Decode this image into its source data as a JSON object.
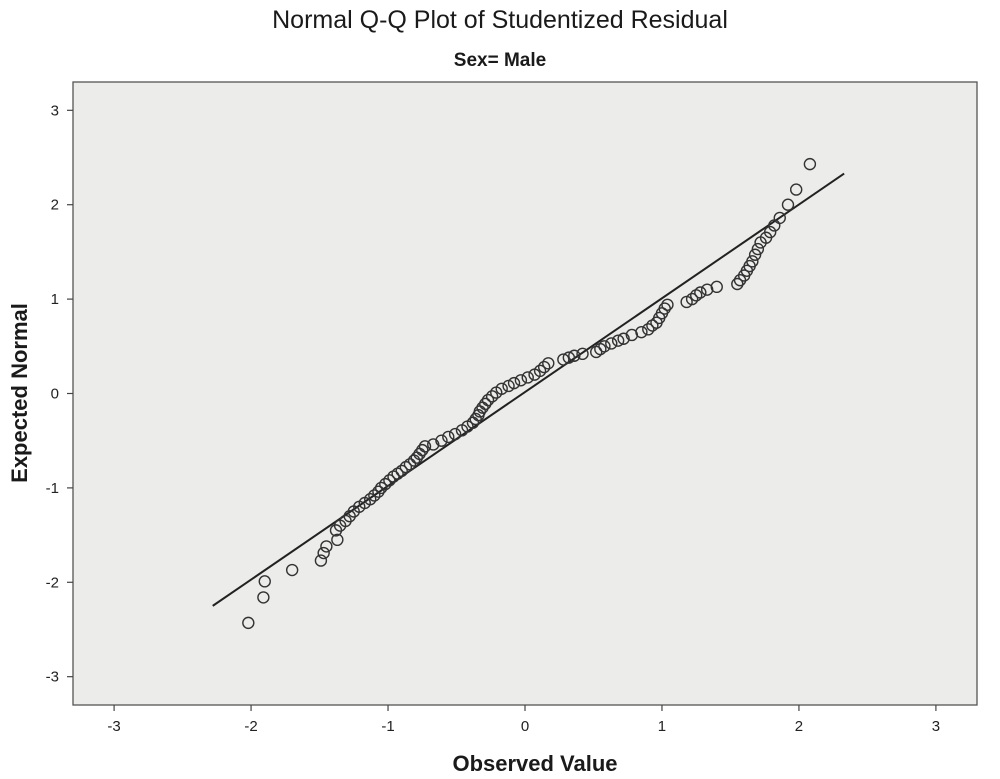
{
  "chart_data": {
    "type": "scatter",
    "title": "Normal Q-Q Plot of Studentized Residual",
    "subtitle": "Sex= Male",
    "xlabel": "Observed Value",
    "ylabel": "Expected Normal",
    "xlim": [
      -3.3,
      3.3
    ],
    "ylim": [
      -3.3,
      3.3
    ],
    "xticks": [
      -3,
      -2,
      -1,
      0,
      1,
      2,
      3
    ],
    "yticks": [
      -3,
      -2,
      -1,
      0,
      1,
      2,
      3
    ],
    "grid": false,
    "plot_background": "#ececea",
    "marker_color": "#333333",
    "reference_line": {
      "x": [
        -2.28,
        2.33
      ],
      "y": [
        -2.25,
        2.33
      ]
    },
    "points": [
      [
        -2.02,
        -2.43
      ],
      [
        -1.91,
        -2.16
      ],
      [
        -1.9,
        -1.99
      ],
      [
        -1.7,
        -1.87
      ],
      [
        -1.49,
        -1.77
      ],
      [
        -1.47,
        -1.69
      ],
      [
        -1.45,
        -1.62
      ],
      [
        -1.37,
        -1.55
      ],
      [
        -1.38,
        -1.45
      ],
      [
        -1.35,
        -1.4
      ],
      [
        -1.31,
        -1.35
      ],
      [
        -1.28,
        -1.3
      ],
      [
        -1.25,
        -1.25
      ],
      [
        -1.21,
        -1.2
      ],
      [
        -1.17,
        -1.16
      ],
      [
        -1.13,
        -1.12
      ],
      [
        -1.1,
        -1.08
      ],
      [
        -1.07,
        -1.04
      ],
      [
        -1.05,
        -1.0
      ],
      [
        -1.02,
        -0.96
      ],
      [
        -0.99,
        -0.92
      ],
      [
        -0.96,
        -0.88
      ],
      [
        -0.93,
        -0.85
      ],
      [
        -0.9,
        -0.82
      ],
      [
        -0.87,
        -0.78
      ],
      [
        -0.84,
        -0.75
      ],
      [
        -0.81,
        -0.71
      ],
      [
        -0.79,
        -0.68
      ],
      [
        -0.77,
        -0.64
      ],
      [
        -0.75,
        -0.6
      ],
      [
        -0.73,
        -0.56
      ],
      [
        -0.67,
        -0.54
      ],
      [
        -0.61,
        -0.5
      ],
      [
        -0.56,
        -0.46
      ],
      [
        -0.51,
        -0.43
      ],
      [
        -0.46,
        -0.39
      ],
      [
        -0.42,
        -0.35
      ],
      [
        -0.38,
        -0.31
      ],
      [
        -0.36,
        -0.27
      ],
      [
        -0.34,
        -0.23
      ],
      [
        -0.33,
        -0.19
      ],
      [
        -0.31,
        -0.15
      ],
      [
        -0.29,
        -0.11
      ],
      [
        -0.27,
        -0.07
      ],
      [
        -0.24,
        -0.03
      ],
      [
        -0.21,
        0.01
      ],
      [
        -0.17,
        0.05
      ],
      [
        -0.12,
        0.08
      ],
      [
        -0.08,
        0.11
      ],
      [
        -0.03,
        0.14
      ],
      [
        0.02,
        0.17
      ],
      [
        0.07,
        0.2
      ],
      [
        0.11,
        0.24
      ],
      [
        0.14,
        0.28
      ],
      [
        0.17,
        0.32
      ],
      [
        0.28,
        0.36
      ],
      [
        0.32,
        0.38
      ],
      [
        0.36,
        0.4
      ],
      [
        0.42,
        0.42
      ],
      [
        0.52,
        0.44
      ],
      [
        0.55,
        0.47
      ],
      [
        0.58,
        0.5
      ],
      [
        0.63,
        0.53
      ],
      [
        0.68,
        0.56
      ],
      [
        0.72,
        0.58
      ],
      [
        0.78,
        0.62
      ],
      [
        0.85,
        0.65
      ],
      [
        0.9,
        0.68
      ],
      [
        0.93,
        0.72
      ],
      [
        0.96,
        0.75
      ],
      [
        0.98,
        0.8
      ],
      [
        1.0,
        0.85
      ],
      [
        1.02,
        0.9
      ],
      [
        1.04,
        0.94
      ],
      [
        1.18,
        0.97
      ],
      [
        1.22,
        1.0
      ],
      [
        1.25,
        1.04
      ],
      [
        1.28,
        1.07
      ],
      [
        1.33,
        1.1
      ],
      [
        1.4,
        1.13
      ],
      [
        1.55,
        1.16
      ],
      [
        1.57,
        1.2
      ],
      [
        1.6,
        1.25
      ],
      [
        1.62,
        1.3
      ],
      [
        1.64,
        1.35
      ],
      [
        1.66,
        1.4
      ],
      [
        1.68,
        1.47
      ],
      [
        1.7,
        1.53
      ],
      [
        1.72,
        1.6
      ],
      [
        1.76,
        1.65
      ],
      [
        1.79,
        1.71
      ],
      [
        1.82,
        1.78
      ],
      [
        1.86,
        1.86
      ],
      [
        1.92,
        2.0
      ],
      [
        1.98,
        2.16
      ],
      [
        2.08,
        2.43
      ]
    ]
  }
}
